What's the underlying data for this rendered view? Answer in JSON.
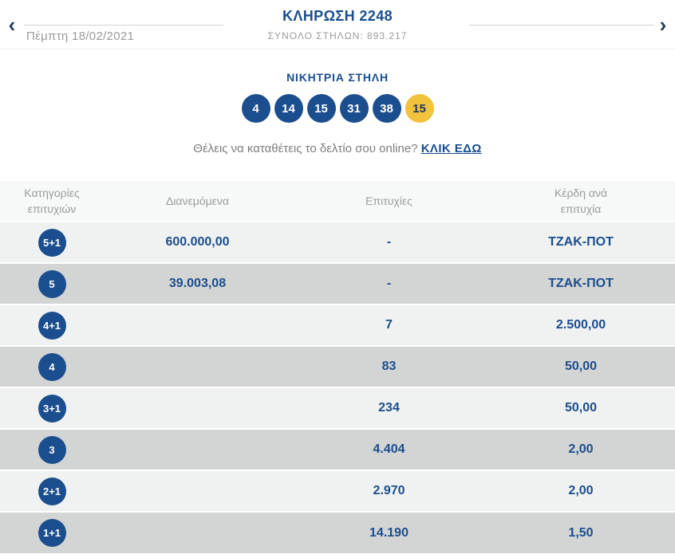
{
  "header": {
    "prev_icon": "‹",
    "next_icon": "›",
    "date": "Πέμπτη 18/02/2021",
    "title": "ΚΛΗΡΩΣΗ 2248",
    "subtitle": "ΣΥΝΟΛΟ ΣΤΗΛΩΝ: 893.217"
  },
  "winning": {
    "title": "ΝΙΚΗΤΡΙΑ ΣΤΗΛΗ",
    "numbers": [
      "4",
      "14",
      "15",
      "31",
      "38"
    ],
    "joker": "15"
  },
  "cta": {
    "text": "Θέλεις να καταθέτεις το δελτίο σου online?",
    "link_label": "ΚΛΙΚ ΕΔΩ"
  },
  "table": {
    "columns": [
      "Κατηγορίες επιτυχιών",
      "Διανεμόμενα",
      "Επιτυχίες",
      "Κέρδη ανά επιτυχία"
    ],
    "rows": [
      {
        "category": "5+1",
        "distributed": "600.000,00",
        "winners": "-",
        "prize": "ΤΖΑΚ-ΠΟΤ"
      },
      {
        "category": "5",
        "distributed": "39.003,08",
        "winners": "-",
        "prize": "ΤΖΑΚ-ΠΟΤ"
      },
      {
        "category": "4+1",
        "distributed": "",
        "winners": "7",
        "prize": "2.500,00"
      },
      {
        "category": "4",
        "distributed": "",
        "winners": "83",
        "prize": "50,00"
      },
      {
        "category": "3+1",
        "distributed": "",
        "winners": "234",
        "prize": "50,00"
      },
      {
        "category": "3",
        "distributed": "",
        "winners": "4.404",
        "prize": "2,00"
      },
      {
        "category": "2+1",
        "distributed": "",
        "winners": "2.970",
        "prize": "2,00"
      },
      {
        "category": "1+1",
        "distributed": "",
        "winners": "14.190",
        "prize": "1,50"
      }
    ]
  },
  "colors": {
    "primary_blue": "#1b4e8e",
    "joker_yellow": "#f3c23c",
    "row_light": "#f0f1f1",
    "row_dark": "#d3d4d4",
    "header_row": "#f7f8f8",
    "muted_text": "#9b9b9b"
  }
}
